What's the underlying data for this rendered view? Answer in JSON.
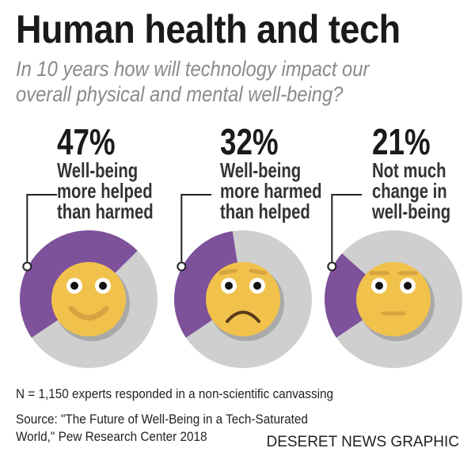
{
  "title": "Human health and tech",
  "subtitle": [
    "In 10 years how will technology impact our",
    "overall physical and mental well-being?"
  ],
  "colors": {
    "purple": "#7E519B",
    "gray": "#CFCFCF",
    "face": "#F0C24B",
    "mouth": "#D6A440"
  },
  "chart_data": {
    "type": "pie",
    "title": "In 10 years how will technology impact our overall physical and mental well-being?",
    "categories": [
      "Well-being more helped than harmed",
      "Well-being more harmed than helped",
      "Not much change in well-being"
    ],
    "values": [
      47,
      32,
      21
    ],
    "items": [
      {
        "pct_label": "47%",
        "value": 47,
        "label": [
          "Well-being",
          "more helped",
          "than harmed"
        ],
        "face": "happy"
      },
      {
        "pct_label": "32%",
        "value": 32,
        "label": [
          "Well-being",
          "more harmed",
          "than helped"
        ],
        "face": "sad"
      },
      {
        "pct_label": "21%",
        "value": 21,
        "label": [
          "Not much",
          "change in",
          "well-being"
        ],
        "face": "neutral"
      }
    ]
  },
  "footnote": "N = 1,150 experts responded in a non-scientific canvassing",
  "source": [
    "Source: \"The Future of Well-Being in a Tech-Saturated",
    "World,\" Pew Research Center 2018"
  ],
  "credit": "DESERET NEWS GRAPHIC"
}
